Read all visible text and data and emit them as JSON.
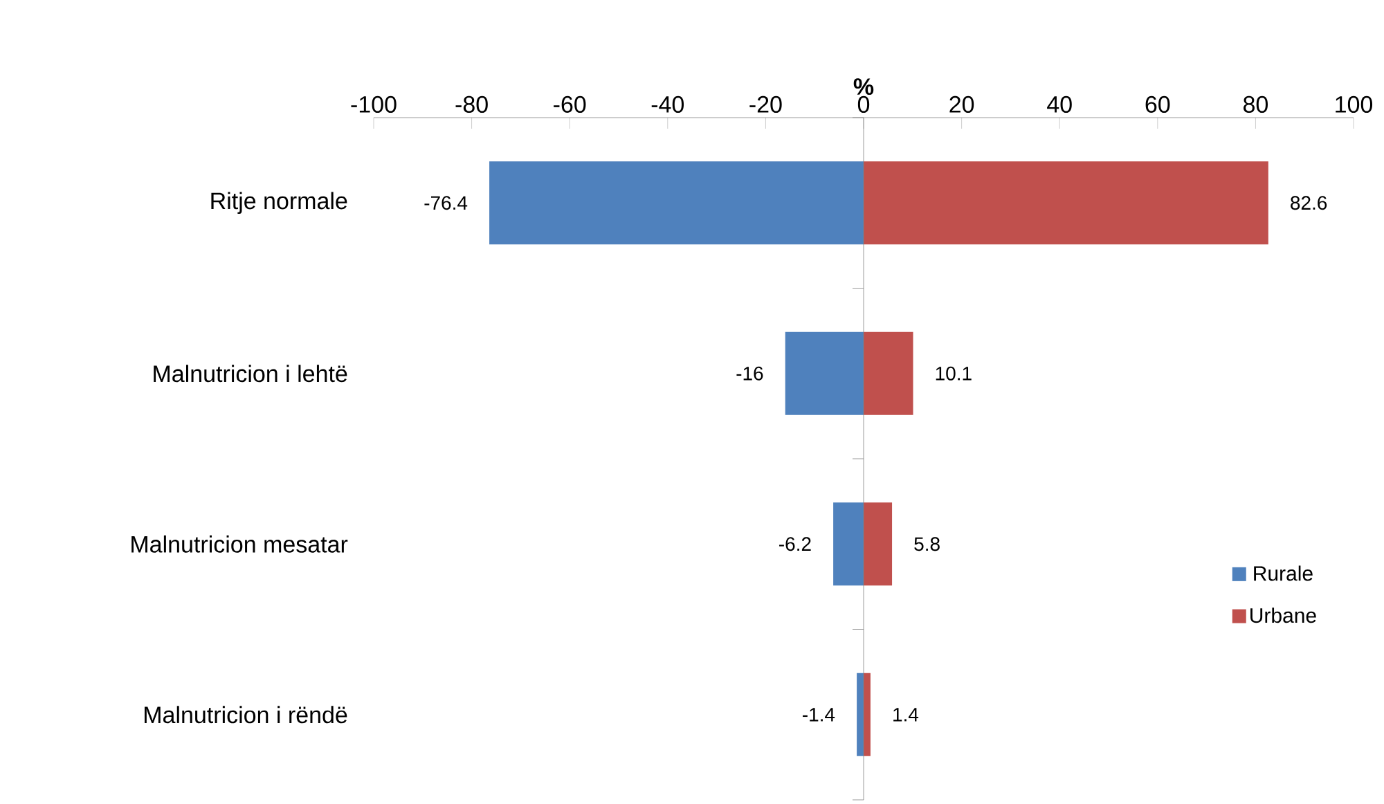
{
  "chart_data": {
    "type": "bar",
    "orientation": "horizontal",
    "stacked": true,
    "xlabel": "%",
    "categories": [
      "Ritje normale",
      "Malnutricion i lehtë",
      "Malnutricion mesatar",
      "Malnutricion i rëndë"
    ],
    "series": [
      {
        "name": "Rurale",
        "color": "#4f81bd",
        "values": [
          -76.4,
          -16,
          -6.2,
          -1.4
        ]
      },
      {
        "name": "Urbane",
        "color": "#c0504d",
        "values": [
          82.6,
          10.1,
          5.8,
          1.4
        ]
      }
    ],
    "xlim": [
      -100,
      100
    ],
    "xticks": [
      -100,
      -80,
      -60,
      -40,
      -20,
      0,
      20,
      40,
      60,
      80,
      100
    ],
    "data_labels": true,
    "legend": "right",
    "grid": false,
    "ref_lines": [
      {
        "axis": "x",
        "value": 0
      }
    ]
  }
}
